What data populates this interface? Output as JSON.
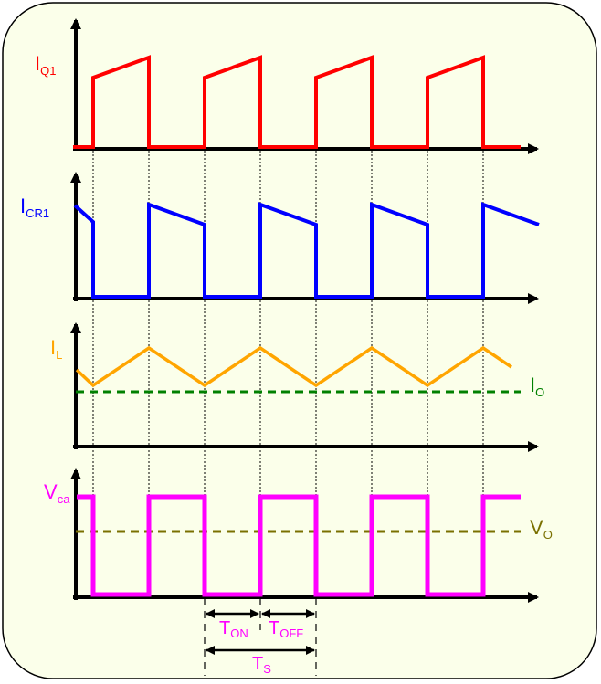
{
  "colors": {
    "frame_fill": "#fbffea",
    "frame_stroke": "#000000",
    "axis": "#000000",
    "iq1": "#ff0000",
    "icr1": "#0000ff",
    "il": "#ffa500",
    "io": "#008000",
    "vca": "#ff00ff",
    "vo": "#7a7000",
    "guide": "#000000",
    "timing": "#ff00ff"
  },
  "labels": {
    "iq1": {
      "main": "I",
      "sub": "Q1"
    },
    "icr1": {
      "main": "I",
      "sub": "CR1"
    },
    "il": {
      "main": "I",
      "sub": "L"
    },
    "io": {
      "main": "I",
      "sub": "O"
    },
    "vca": {
      "main": "V",
      "sub": "ca"
    },
    "vo": {
      "main": "V",
      "sub": "O"
    },
    "ton": {
      "main": "T",
      "sub": "ON"
    },
    "toff": {
      "main": "T",
      "sub": "OFF"
    },
    "ts": {
      "main": "T",
      "sub": "S"
    }
  },
  "icons": {
    "axis_arrow": "arrow-head",
    "dimension_arrow": "double-headed-arrow"
  }
}
